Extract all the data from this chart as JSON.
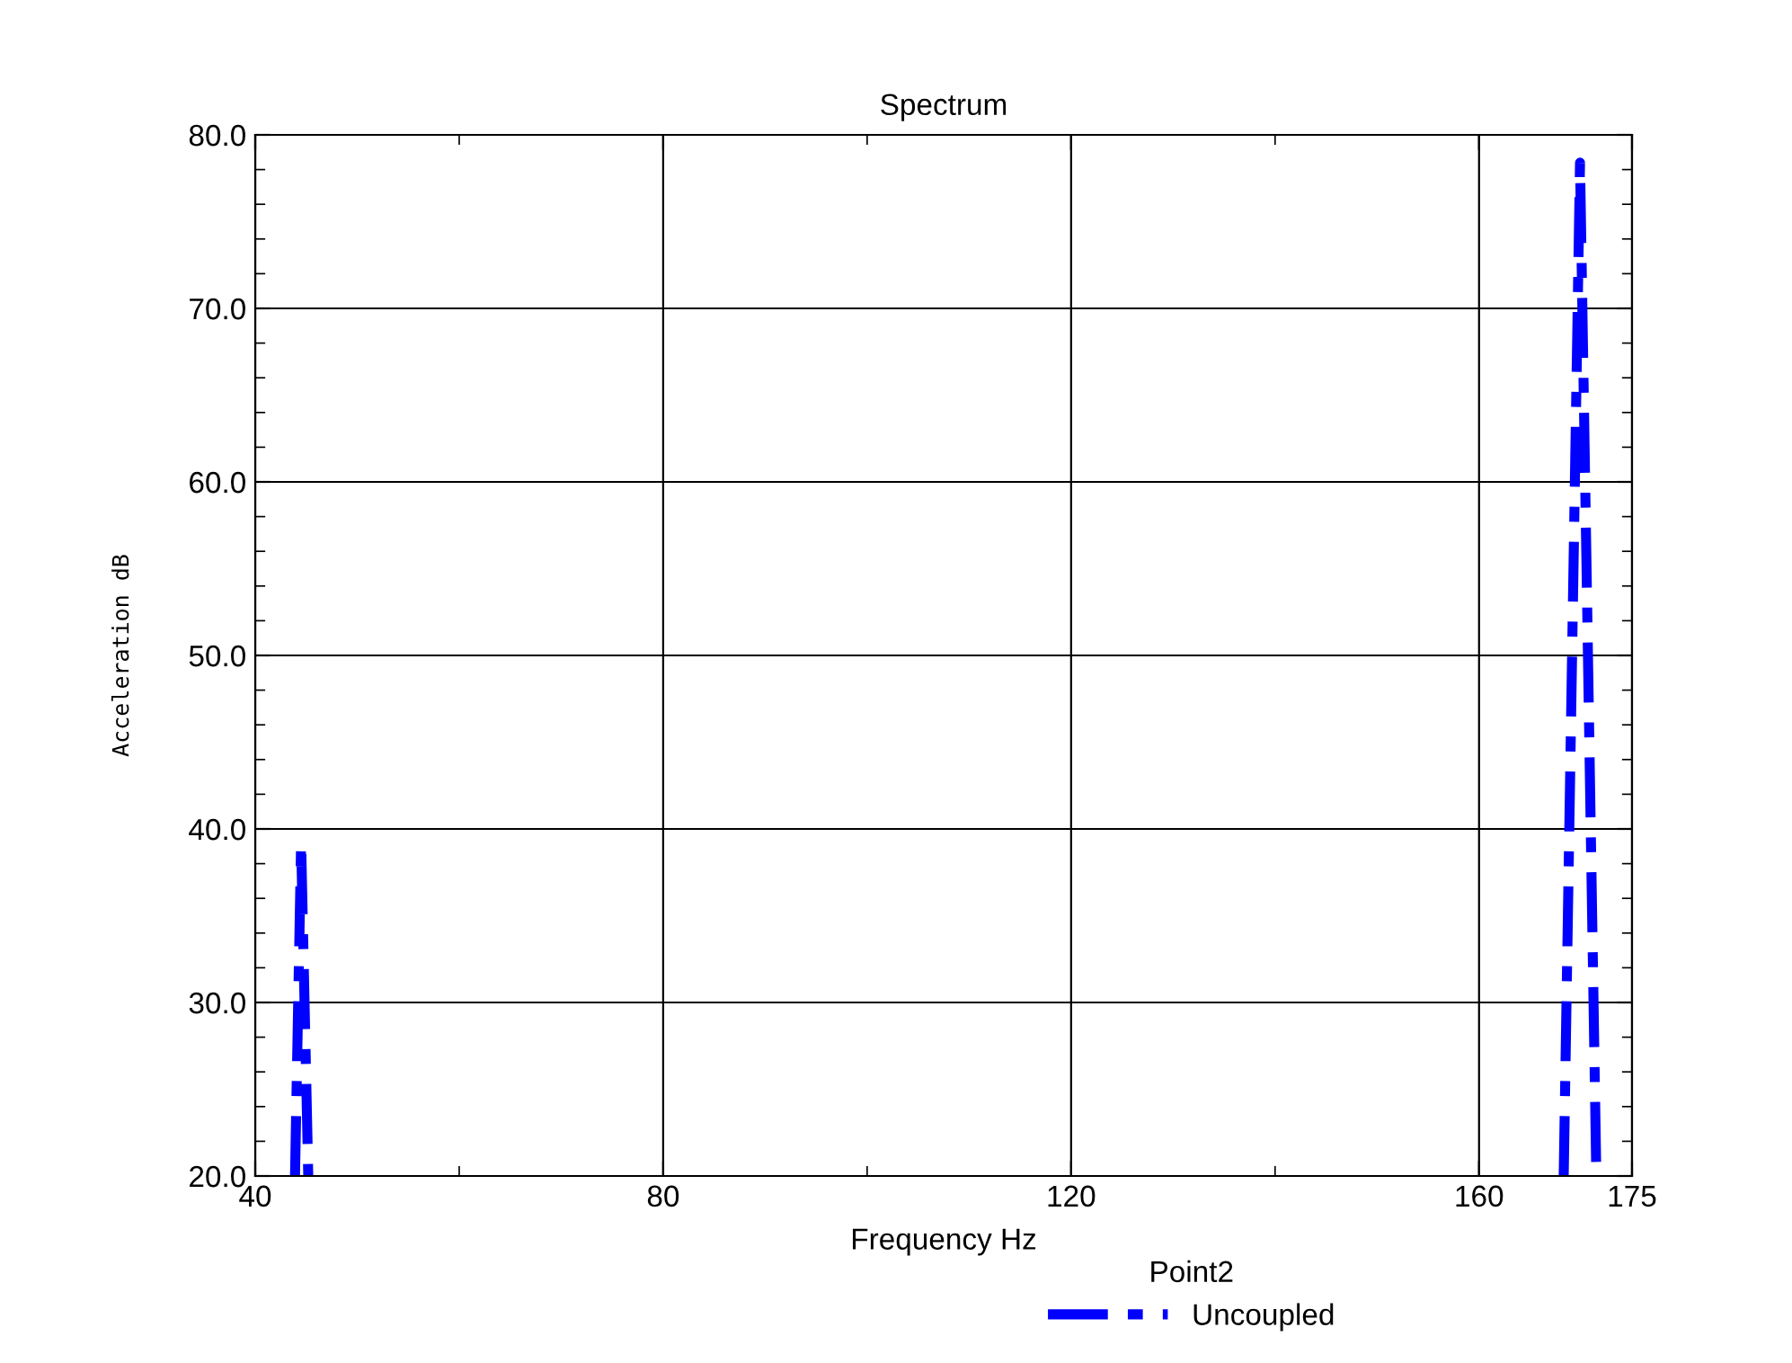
{
  "chart_data": {
    "type": "line",
    "title": "Spectrum",
    "xlabel": "Frequency Hz",
    "ylabel": "Acceleration dB",
    "legend_title": "Point2",
    "series": [
      {
        "name": "Uncoupled",
        "color": "#0000ff",
        "x": [
          43.9,
          44.5,
          45.2,
          null,
          168.3,
          169.9,
          171.5
        ],
        "values": [
          20,
          39.2,
          20,
          null,
          20,
          78.4,
          20
        ]
      }
    ],
    "xlim": [
      40,
      175
    ],
    "xticks": [
      40,
      {
        "value": 60,
        "label": null
      },
      80,
      {
        "value": 100,
        "label": null
      },
      120,
      {
        "value": 140,
        "label": null
      },
      160,
      175
    ],
    "ylim": [
      20,
      80
    ],
    "yticks": [
      {
        "value": 20,
        "label": "20.0"
      },
      {
        "value": 22,
        "label": null
      },
      {
        "value": 24,
        "label": null
      },
      {
        "value": 26,
        "label": null
      },
      {
        "value": 28,
        "label": null
      },
      {
        "value": 30,
        "label": "30.0"
      },
      {
        "value": 32,
        "label": null
      },
      {
        "value": 34,
        "label": null
      },
      {
        "value": 36,
        "label": null
      },
      {
        "value": 38,
        "label": null
      },
      {
        "value": 40,
        "label": "40.0"
      },
      {
        "value": 42,
        "label": null
      },
      {
        "value": 44,
        "label": null
      },
      {
        "value": 46,
        "label": null
      },
      {
        "value": 48,
        "label": null
      },
      {
        "value": 50,
        "label": "50.0"
      },
      {
        "value": 52,
        "label": null
      },
      {
        "value": 54,
        "label": null
      },
      {
        "value": 56,
        "label": null
      },
      {
        "value": 58,
        "label": null
      },
      {
        "value": 60,
        "label": "60.0"
      },
      {
        "value": 62,
        "label": null
      },
      {
        "value": 64,
        "label": null
      },
      {
        "value": 66,
        "label": null
      },
      {
        "value": 68,
        "label": null
      },
      {
        "value": 70,
        "label": "70.0"
      },
      {
        "value": 72,
        "label": null
      },
      {
        "value": 74,
        "label": null
      },
      {
        "value": 76,
        "label": null
      },
      {
        "value": 78,
        "label": null
      },
      {
        "value": 80,
        "label": "80.0"
      }
    ],
    "grid": true,
    "legend": "bottom",
    "line_style": "dashdot",
    "marker": "none"
  }
}
